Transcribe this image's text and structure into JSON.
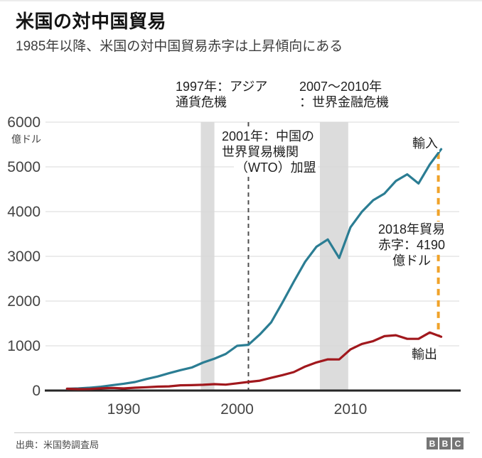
{
  "header": {
    "title": "米国の対中国貿易",
    "subtitle": "1985年以降、米国の対中国貿易赤字は上昇傾向にある"
  },
  "chart_data": {
    "type": "line",
    "title": "米国の対中国貿易",
    "ylabel_unit": "億ドル",
    "ylim": [
      0,
      6000
    ],
    "yticks": [
      0,
      1000,
      2000,
      3000,
      4000,
      5000,
      6000
    ],
    "xticks": [
      1990,
      2000,
      2010
    ],
    "grid": true,
    "x": [
      1985,
      1986,
      1987,
      1988,
      1989,
      1990,
      1991,
      1992,
      1993,
      1994,
      1995,
      1996,
      1997,
      1998,
      1999,
      2000,
      2001,
      2002,
      2003,
      2004,
      2005,
      2006,
      2007,
      2008,
      2009,
      2010,
      2011,
      2012,
      2013,
      2014,
      2015,
      2016,
      2017,
      2018
    ],
    "series": [
      {
        "id": "imports",
        "name": "輸入",
        "color": "#2b7d93",
        "values": [
          39,
          48,
          63,
          85,
          120,
          152,
          190,
          257,
          315,
          388,
          456,
          515,
          626,
          712,
          818,
          1000,
          1023,
          1252,
          1524,
          1967,
          2435,
          2878,
          3214,
          3378,
          2964,
          3649,
          3993,
          4254,
          4403,
          4684,
          4833,
          4628,
          5054,
          5395
        ]
      },
      {
        "id": "exports",
        "name": "輸出",
        "color": "#a1181d",
        "values": [
          39,
          31,
          35,
          50,
          58,
          48,
          63,
          74,
          88,
          93,
          117,
          120,
          128,
          143,
          131,
          162,
          192,
          221,
          284,
          344,
          412,
          537,
          629,
          697,
          695,
          919,
          1042,
          1105,
          1216,
          1236,
          1156,
          1155,
          1298,
          1203
        ]
      }
    ],
    "bands": [
      {
        "label": "1997年：アジア通貨危機",
        "from": 1996.8,
        "to": 1998.0
      },
      {
        "label": "2007〜2010年：世界金融危機",
        "from": 2007.3,
        "to": 2009.8
      }
    ],
    "vlines": [
      {
        "label": "2001年：中国の世界貿易機関（WTO）加盟",
        "year": 2001,
        "style": "dashed",
        "color": "#4f4f4f"
      }
    ],
    "deficit_marker": {
      "year": 2018,
      "label": "2018年貿易赤字：4190億ドル",
      "color": "#f0a32a",
      "from_value": 5320,
      "to_value": 1230
    },
    "colors": {
      "band": "#dcdcdc",
      "grid": "#d9d9d9",
      "axis": "#262626"
    }
  },
  "annotations": {
    "asia_crisis": {
      "line1": "1997年：アジア",
      "line2": "通貨危機"
    },
    "financial_crisis": {
      "line1": "2007〜2010年",
      "line2": "：世界金融危機"
    },
    "wto": {
      "line1": "2001年：中国の",
      "line2": "世界貿易機関",
      "line3": "（WTO）加盟"
    },
    "deficit": {
      "line1": "2018年貿易",
      "line2": "赤字：4190",
      "line3": "億ドル"
    },
    "imports_label": "輸入",
    "exports_label": "輸出",
    "unit_label": "億ドル"
  },
  "footer": {
    "source": "出典：米国勢調査局",
    "logo": [
      "B",
      "B",
      "C"
    ]
  }
}
